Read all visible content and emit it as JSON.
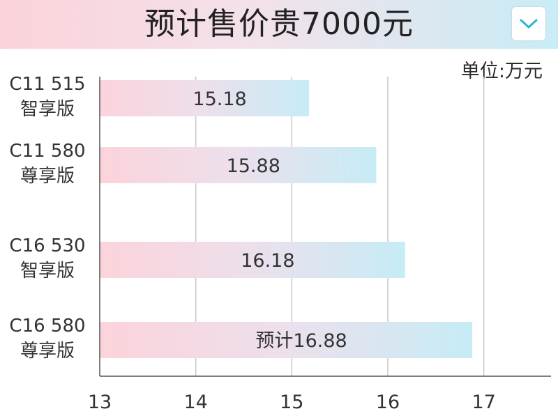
{
  "header": {
    "title": "预计售价贵7000元"
  },
  "unit_label": "单位:万元",
  "colors": {
    "bar_start": "#fcd3db",
    "bar_mid": "#ece0ec",
    "bar_end": "#c6ecf6",
    "grid": "#c8c8c8",
    "axis": "#555555",
    "dropdown_icon": "#2bb6d6"
  },
  "chart_data": {
    "type": "bar",
    "orientation": "horizontal",
    "categories": [
      [
        "C11 515",
        "智享版"
      ],
      [
        "C11 580",
        "尊享版"
      ],
      [
        "C16 530",
        "智享版"
      ],
      [
        "C16 580",
        "尊享版"
      ]
    ],
    "values": [
      15.18,
      15.88,
      16.18,
      16.88
    ],
    "data_labels": [
      "15.18",
      "15.88",
      "16.18",
      "预计16.88"
    ],
    "xlim": [
      13,
      17.7
    ],
    "xticks": [
      13,
      14,
      15,
      16,
      17
    ],
    "xtick_labels": [
      "13",
      "14",
      "15",
      "16",
      "17"
    ],
    "grid": true,
    "xlabel": "",
    "ylabel": ""
  }
}
